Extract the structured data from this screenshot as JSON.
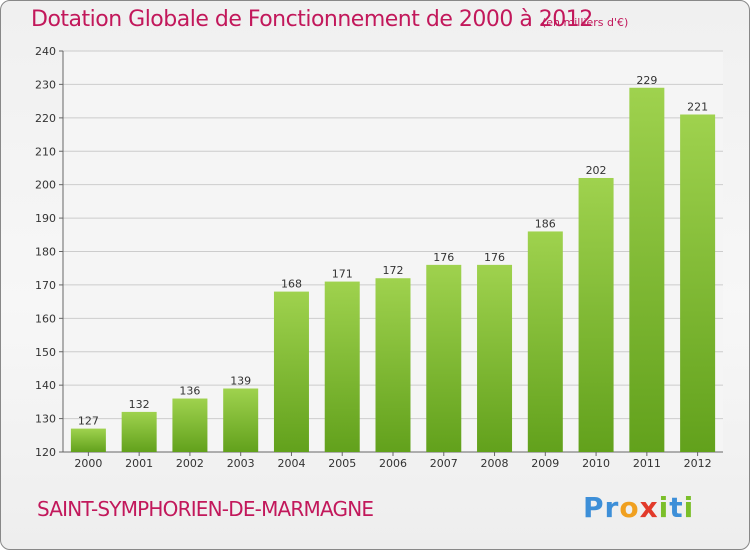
{
  "header": {
    "title": "Dotation Globale de Fonctionnement de 2000 à 2012",
    "unit": "(en milliers d'€)"
  },
  "footer": {
    "commune": "SAINT-SYMPHORIEN-DE-MARMAGNE",
    "logo": "Proxiti"
  },
  "colors": {
    "bar_light": "#9fd24e",
    "bar_dark": "#62a11c",
    "title": "#c2185b",
    "grid": "#cccccc"
  },
  "chart_data": {
    "type": "bar",
    "title": "Dotation Globale de Fonctionnement de 2000 à 2012",
    "subtitle": "(en milliers d'€)",
    "categories": [
      "2000",
      "2001",
      "2002",
      "2003",
      "2004",
      "2005",
      "2006",
      "2007",
      "2008",
      "2009",
      "2010",
      "2011",
      "2012"
    ],
    "values": [
      127,
      132,
      136,
      139,
      168,
      171,
      172,
      176,
      176,
      186,
      202,
      229,
      221
    ],
    "ylim": [
      120,
      240
    ],
    "yticks": [
      120,
      130,
      140,
      150,
      160,
      170,
      180,
      190,
      200,
      210,
      220,
      230,
      240
    ],
    "grid": true,
    "xlabel": "",
    "ylabel": ""
  }
}
